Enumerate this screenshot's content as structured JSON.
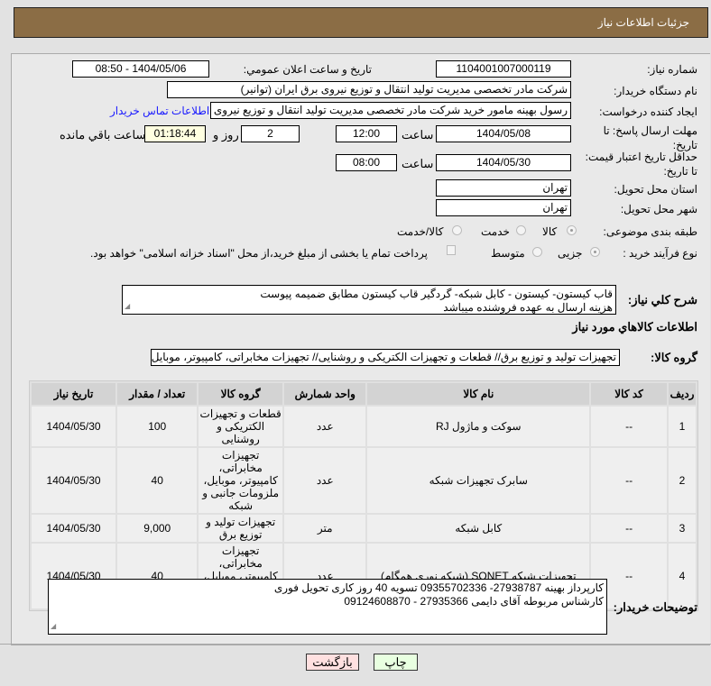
{
  "header": {
    "title": "جزئیات اطلاعات نیاز"
  },
  "form": {
    "need_number_label": "شماره نیاز:",
    "need_number": "1104001007000119",
    "announce_label": "تاریخ و ساعت اعلان عمومي:",
    "announce_value": "1404/05/06 - 08:50",
    "buyer_label": "نام دستگاه خریدار:",
    "buyer_value": "شرکت مادر تخصصی مدیریت تولید  انتقال و توزیع نیروی برق ایران (توانیر)",
    "creator_label": "ایجاد کننده درخواست:",
    "creator_value": "رسول بهینه مامور خرید شرکت مادر تخصصی مدیریت تولید  انتقال و توزیع نیروی",
    "contact_link": "اطلاعات تماس خریدار",
    "deadline_label": "مهلت ارسال پاسخ: تا تاریخ:",
    "deadline_date": "1404/05/08",
    "time_label": "ساعت",
    "deadline_time": "12:00",
    "days": "2",
    "days_label": "روز و",
    "remaining": "01:18:44",
    "remaining_label": "ساعت باقي مانده",
    "validity_label": "حداقل تاریخ اعتبار قیمت: تا تاریخ:",
    "validity_date": "1404/05/30",
    "validity_time": "08:00",
    "province_label": "استان محل تحویل:",
    "province": "تهران",
    "city_label": "شهر محل تحویل:",
    "city": "تهران",
    "category_label": "طبقه بندی موضوعی:",
    "category_options": [
      "کالا",
      "خدمت",
      "کالا/خدمت"
    ],
    "category_selected": "کالا",
    "process_label": "نوع فرآیند خرید :",
    "process_options": [
      "جزیی",
      "متوسط"
    ],
    "process_selected": "جزیی",
    "payment_note": "پرداخت تمام یا بخشی از مبلغ خرید،از محل \"اسناد خزانه اسلامی\" خواهد بود.",
    "desc_label": "شرح کلي نیاز:",
    "desc_lines": [
      "قاب کیستون- کیستون - کابل شبکه- گردگیر قاب کیستون مطابق ضمیمه پیوست",
      "هزینه ارسال به عهده فروشنده میباشد"
    ],
    "items_title": "اطلاعات کالاهاي مورد نیاز",
    "group_label": "گروه کالا:",
    "group_value": "تجهیزات تولید و توزیع برق// قطعات و تجهیزات الکتریکی و روشنایی// تجهیزات مخابراتی، کامپیوتر، موبایل، ملزو"
  },
  "table": {
    "headers": [
      "ردیف",
      "کد کالا",
      "نام کالا",
      "واحد شمارش",
      "گروه کالا",
      "تعداد / مقدار",
      "تاریخ نیاز"
    ],
    "rows": [
      [
        "1",
        "--",
        "سوکت و ماژول RJ",
        "عدد",
        "قطعات و تجهیزات الکتریکی و روشنایی",
        "100",
        "1404/05/30"
      ],
      [
        "2",
        "--",
        "سابرک تجهیزات شبکه",
        "عدد",
        "تجهیزات مخابراتی، کامپیوتر، موبایل، ملزومات جانبی و شبکه",
        "40",
        "1404/05/30"
      ],
      [
        "3",
        "--",
        "کابل شبکه",
        "متر",
        "تجهیزات تولید و توزیع برق",
        "9,000",
        "1404/05/30"
      ],
      [
        "4",
        "--",
        "تجهیزات شبکه SONET (شبکه نوری همگام)",
        "عدد",
        "تجهیزات مخابراتی، کامپیوتر، موبایل، ملزومات جانبی و شبکه",
        "40",
        "1404/05/30"
      ]
    ]
  },
  "remarks": {
    "label": "توضیحات خریدار:",
    "lines": [
      "کارپرداز بهینه 27938787- 09355702336  تسویه 40 روز کاری  تحویل فوری",
      "کارشناس مربوطه آقای دایمی 27935366 - 09124608870"
    ]
  },
  "buttons": {
    "back": "بازگشت",
    "print": "چاپ"
  },
  "colors": {
    "header": "#8b6d45",
    "link": "#1a1aff",
    "back_button": "#ffe0e0",
    "print_button": "#e8ffe0"
  }
}
